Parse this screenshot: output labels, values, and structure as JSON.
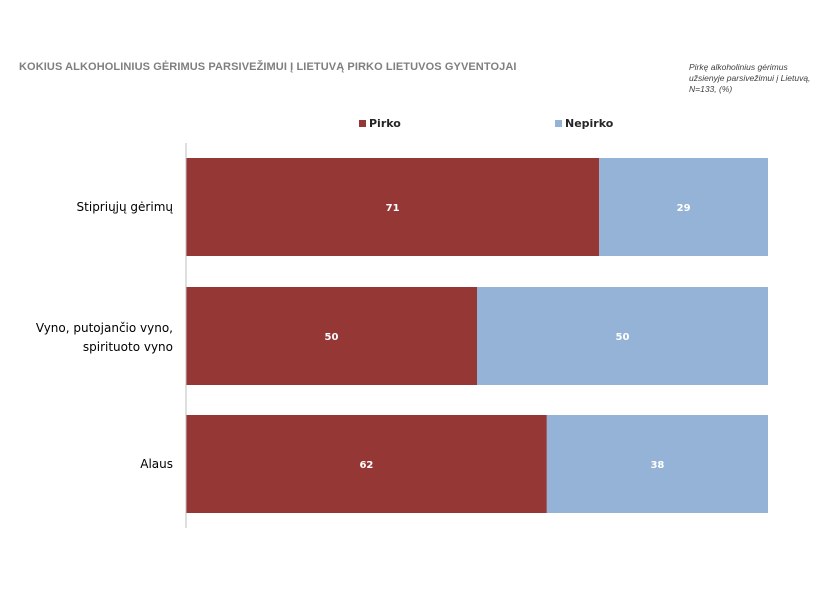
{
  "title": "KOKIUS ALKOHOLINIUS GĖRIMUS PARSIVEŽIMUI Į LIETUVĄ PIRKO LIETUVOS GYVENTOJAI",
  "note": "Pirkę alkoholinius gėrimus užsienyje parsivežimui į Lietuvą, N=133, (%)",
  "colors": {
    "pirko": "#953735",
    "nepirko": "#95b3d7"
  },
  "chart_data": {
    "type": "bar",
    "orientation": "horizontal",
    "stacked": true,
    "categories": [
      "Stipriųjų gėrimų",
      "Vyno, putojančio vyno, spirituoto vyno",
      "Alaus"
    ],
    "series": [
      {
        "name": "Pirko",
        "values": [
          71,
          50,
          62
        ]
      },
      {
        "name": "Nepirko",
        "values": [
          29,
          50,
          38
        ]
      }
    ],
    "xlim": [
      0,
      100
    ],
    "legend": "top",
    "grid": false
  }
}
